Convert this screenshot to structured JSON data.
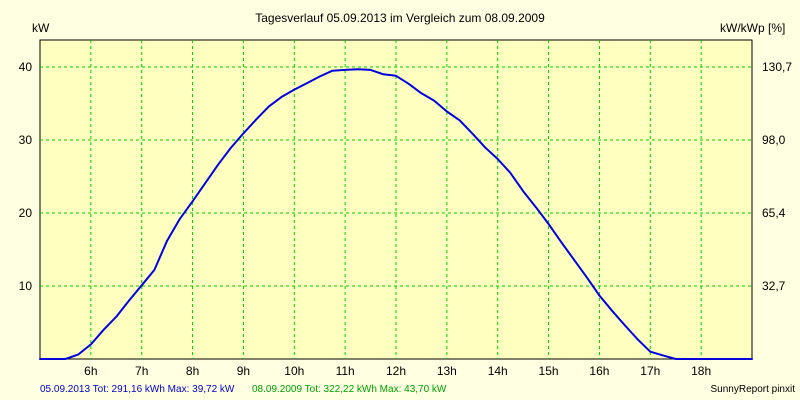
{
  "chart_data": {
    "type": "line",
    "title": "Tagesverlauf 05.09.2013 im Vergleich zum 08.09.2009",
    "ylabel_left": "kW",
    "ylabel_right": "kW/kWp [%]",
    "x_ticks": [
      "6h",
      "7h",
      "8h",
      "9h",
      "10h",
      "11h",
      "12h",
      "13h",
      "14h",
      "15h",
      "16h",
      "17h",
      "18h"
    ],
    "y_ticks_left": [
      "10",
      "20",
      "30",
      "40"
    ],
    "y_ticks_right": [
      "32,7",
      "65,4",
      "98,0",
      "130,7"
    ],
    "xlim": [
      5.0,
      19.0
    ],
    "ylim": [
      0,
      43.7
    ],
    "grid": true,
    "series": [
      {
        "name": "05.09.2013",
        "color": "#0000dd",
        "x": [
          5.0,
          5.5,
          5.75,
          6.0,
          6.25,
          6.5,
          6.75,
          7.0,
          7.25,
          7.5,
          7.75,
          8.0,
          8.25,
          8.5,
          8.75,
          9.0,
          9.25,
          9.5,
          9.75,
          10.0,
          10.25,
          10.5,
          10.75,
          11.0,
          11.25,
          11.5,
          11.75,
          12.0,
          12.25,
          12.5,
          12.75,
          13.0,
          13.25,
          13.5,
          13.75,
          14.0,
          14.25,
          14.5,
          14.75,
          15.0,
          15.25,
          15.5,
          15.75,
          16.0,
          16.25,
          16.5,
          16.75,
          17.0,
          17.25,
          17.5,
          17.75,
          18.0,
          18.25,
          18.5,
          18.75,
          19.0
        ],
        "values": [
          0,
          0,
          0.6,
          2.0,
          4.0,
          5.8,
          8.0,
          10.1,
          12.2,
          16.2,
          19.2,
          21.6,
          24.1,
          26.6,
          28.9,
          30.9,
          32.8,
          34.6,
          35.9,
          36.9,
          37.8,
          38.7,
          39.5,
          39.6,
          39.7,
          39.6,
          39.0,
          38.8,
          37.7,
          36.4,
          35.4,
          33.9,
          32.7,
          30.9,
          29.0,
          27.4,
          25.5,
          23.0,
          20.8,
          18.5,
          16.0,
          13.6,
          11.2,
          8.7,
          6.6,
          4.6,
          2.7,
          1.0,
          0.5,
          0,
          0,
          0,
          0,
          0,
          0,
          0
        ],
        "note": "approximate"
      }
    ],
    "footer": {
      "series1_text": "05.09.2013 Tot: 291,16 kWh Max: 39,72 kW",
      "series2_text": "08.09.2009 Tot: 322,22 kWh Max: 43,70 kW",
      "brand": "SunnyReport pinxit"
    }
  }
}
